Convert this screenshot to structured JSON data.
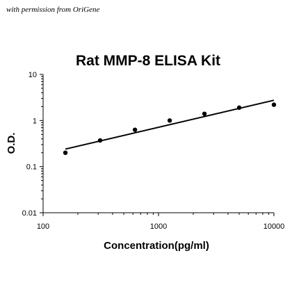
{
  "permission_note": "with permission from OriGene",
  "chart_data": {
    "type": "scatter",
    "title": "Rat MMP-8 ELISA Kit",
    "xlabel": "Concentration(pg/ml)",
    "ylabel": "O.D.",
    "x_scale": "log",
    "y_scale": "log",
    "xlim": [
      100,
      10000
    ],
    "ylim": [
      0.01,
      10
    ],
    "x_ticks": [
      100,
      1000,
      10000
    ],
    "y_ticks": [
      0.01,
      0.1,
      1,
      10
    ],
    "x_tick_labels": [
      "100",
      "1000",
      "10000"
    ],
    "y_tick_labels": [
      "0.01",
      "0.1",
      "1",
      "10"
    ],
    "grid": false,
    "legend": "none",
    "series": [
      {
        "type": "scatter",
        "x": [
          156,
          312,
          625,
          1250,
          2500,
          5000,
          10000
        ],
        "y": [
          0.2,
          0.37,
          0.63,
          1.0,
          1.4,
          1.9,
          2.2
        ]
      },
      {
        "type": "line",
        "x": [
          156,
          10000
        ],
        "y": [
          0.24,
          2.75
        ]
      }
    ],
    "colors": {
      "points": "#000000",
      "line": "#000000",
      "axis": "#000000"
    }
  }
}
